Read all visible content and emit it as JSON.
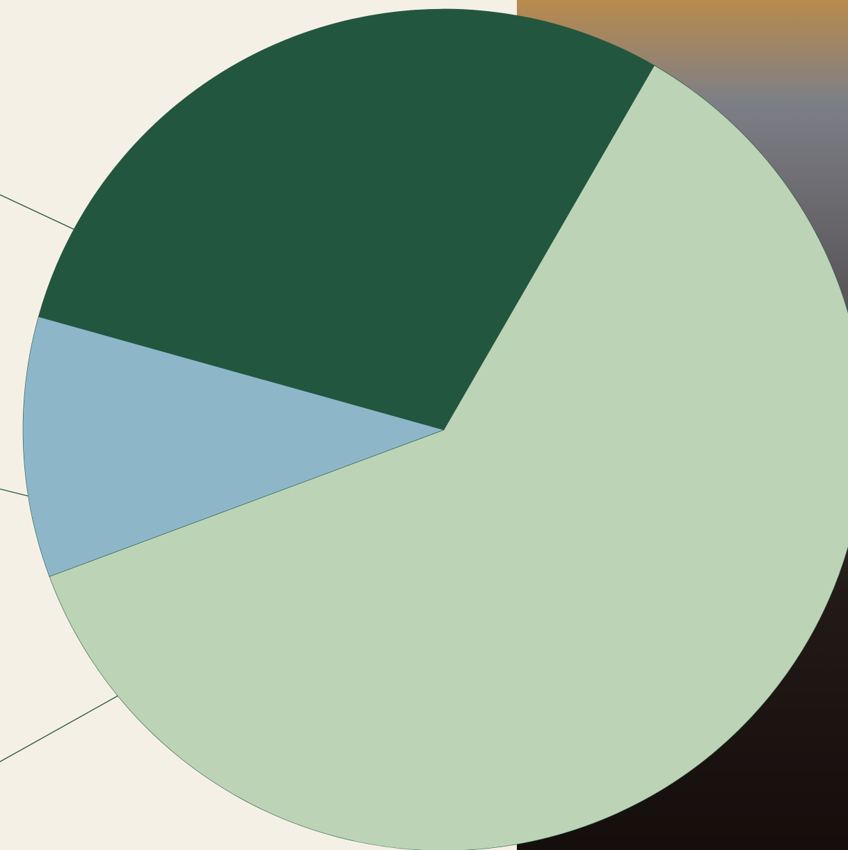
{
  "chart_data": {
    "type": "pie",
    "values": [
      61,
      10,
      29
    ],
    "colors": [
      "#bcd3b6",
      "#8db7c9",
      "#23563f"
    ]
  }
}
